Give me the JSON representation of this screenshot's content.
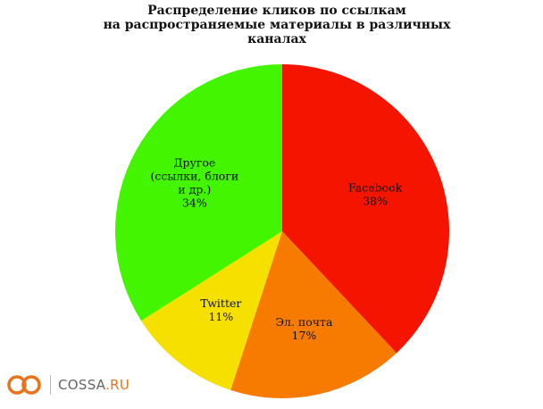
{
  "chart_data": {
    "type": "pie",
    "title_lines": [
      "Распределение кликов по ссылкам",
      "на распространяемые материалы в различных",
      "каналах"
    ],
    "slices": [
      {
        "label_lines": [
          "Facebook"
        ],
        "value": 38,
        "value_label": "38%",
        "color": "#f51400"
      },
      {
        "label_lines": [
          "Эл. почта"
        ],
        "value": 17,
        "value_label": "17%",
        "color": "#f77b00"
      },
      {
        "label_lines": [
          "Twitter"
        ],
        "value": 11,
        "value_label": "11%",
        "color": "#f5e000"
      },
      {
        "label_lines": [
          "Другое",
          "(ссылки, блоги",
          "и др.)"
        ],
        "value": 34,
        "value_label": "34%",
        "color": "#44f500"
      }
    ]
  },
  "logo": {
    "text_main": "COSSA",
    "text_tld": ".RU",
    "color_accent": "#e8731a",
    "icon": "infinity-logo-icon"
  }
}
